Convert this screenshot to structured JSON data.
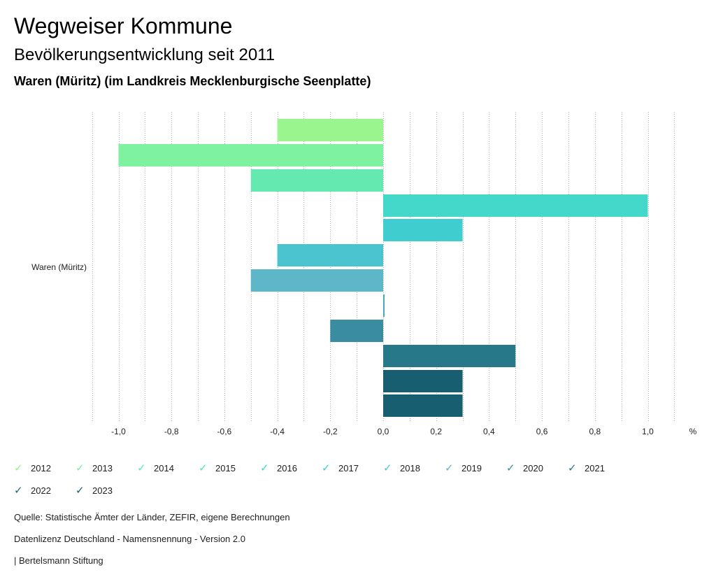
{
  "header": {
    "title": "Wegweiser Kommune",
    "subtitle": "Bevölkerungsentwicklung seit 2011",
    "region": "Waren (Müritz) (im Landkreis Mecklenburgische Seenplatte)"
  },
  "chart_data": {
    "type": "bar",
    "orientation": "horizontal",
    "category": "Waren (Müritz)",
    "unit_label": "%",
    "xlim": [
      -1.1,
      1.1
    ],
    "ticks": [
      -1.0,
      -0.8,
      -0.6,
      -0.4,
      -0.2,
      0.0,
      0.2,
      0.4,
      0.6,
      0.8,
      1.0
    ],
    "tick_labels": [
      "-1,0",
      "-0,8",
      "-0,6",
      "-0,4",
      "-0,2",
      "0,0",
      "0,2",
      "0,4",
      "0,6",
      "0,8",
      "1,0"
    ],
    "grid": true,
    "legend_position": "bottom",
    "series": [
      {
        "name": "2012",
        "value": -0.4,
        "color": "#9af58e"
      },
      {
        "name": "2013",
        "value": -1.0,
        "color": "#7ff2a2"
      },
      {
        "name": "2014",
        "value": -0.5,
        "color": "#64eab1"
      },
      {
        "name": "2015",
        "value": 1.0,
        "color": "#43d8c9"
      },
      {
        "name": "2016",
        "value": 0.3,
        "color": "#40cdd0"
      },
      {
        "name": "2017",
        "value": -0.4,
        "color": "#4bc4d0"
      },
      {
        "name": "2018",
        "value": -0.5,
        "color": "#5db7c9"
      },
      {
        "name": "2019",
        "value": 0.005,
        "color": "#4ca9bc"
      },
      {
        "name": "2020",
        "value": -0.2,
        "color": "#3a8da0"
      },
      {
        "name": "2021",
        "value": 0.5,
        "color": "#277888"
      },
      {
        "name": "2022",
        "value": 0.3,
        "color": "#175f70"
      },
      {
        "name": "2023",
        "value": 0.3,
        "color": "#175f70"
      }
    ]
  },
  "legend": {
    "items": [
      {
        "label": "2012",
        "color": "#9af58e"
      },
      {
        "label": "2013",
        "color": "#7ff2a2"
      },
      {
        "label": "2014",
        "color": "#64eab1"
      },
      {
        "label": "2015",
        "color": "#52e3bb"
      },
      {
        "label": "2016",
        "color": "#43d8c9"
      },
      {
        "label": "2017",
        "color": "#40cdd0"
      },
      {
        "label": "2018",
        "color": "#4bc4d0"
      },
      {
        "label": "2019",
        "color": "#5db7c9"
      },
      {
        "label": "2020",
        "color": "#3a8da0"
      },
      {
        "label": "2021",
        "color": "#277888"
      },
      {
        "label": "2022",
        "color": "#1f6a7a"
      },
      {
        "label": "2023",
        "color": "#175f70"
      }
    ]
  },
  "footer": {
    "source": "Quelle: Statistische Ämter der Länder, ZEFIR, eigene Berechnungen",
    "license": "Datenlizenz Deutschland - Namensnennung - Version 2.0",
    "publisher": "| Bertelsmann Stiftung"
  }
}
